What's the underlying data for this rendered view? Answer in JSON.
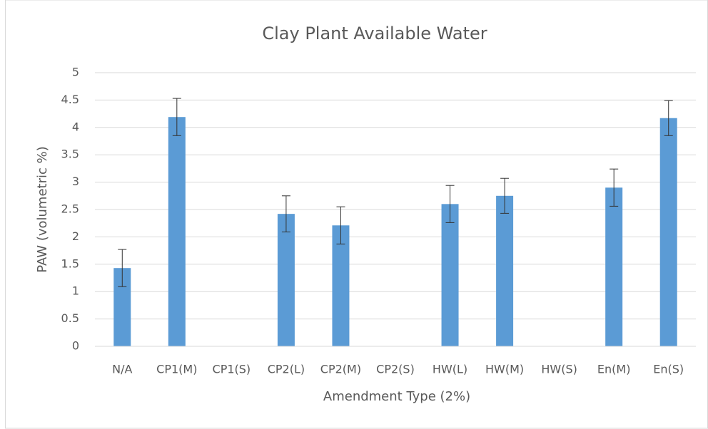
{
  "chart_data": {
    "type": "bar",
    "title": "Clay Plant Available Water",
    "xlabel": "Amendment Type (2%)",
    "ylabel": "PAW (volumetric %)",
    "categories": [
      "N/A",
      "CP1(M)",
      "CP1(S)",
      "CP2(L)",
      "CP2(M)",
      "CP2(S)",
      "HW(L)",
      "HW(M)",
      "HW(S)",
      "En(M)",
      "En(S)"
    ],
    "values": [
      1.43,
      4.19,
      null,
      2.42,
      2.21,
      null,
      2.6,
      2.75,
      null,
      2.9,
      4.17
    ],
    "errors": [
      0.34,
      0.34,
      null,
      0.33,
      0.34,
      null,
      0.34,
      0.32,
      null,
      0.34,
      0.32
    ],
    "color": "#5b9bd5",
    "ylim": [
      0,
      5
    ],
    "yticks": [
      0,
      0.5,
      1,
      1.5,
      2,
      2.5,
      3,
      3.5,
      4,
      4.5,
      5
    ],
    "grid": true
  }
}
